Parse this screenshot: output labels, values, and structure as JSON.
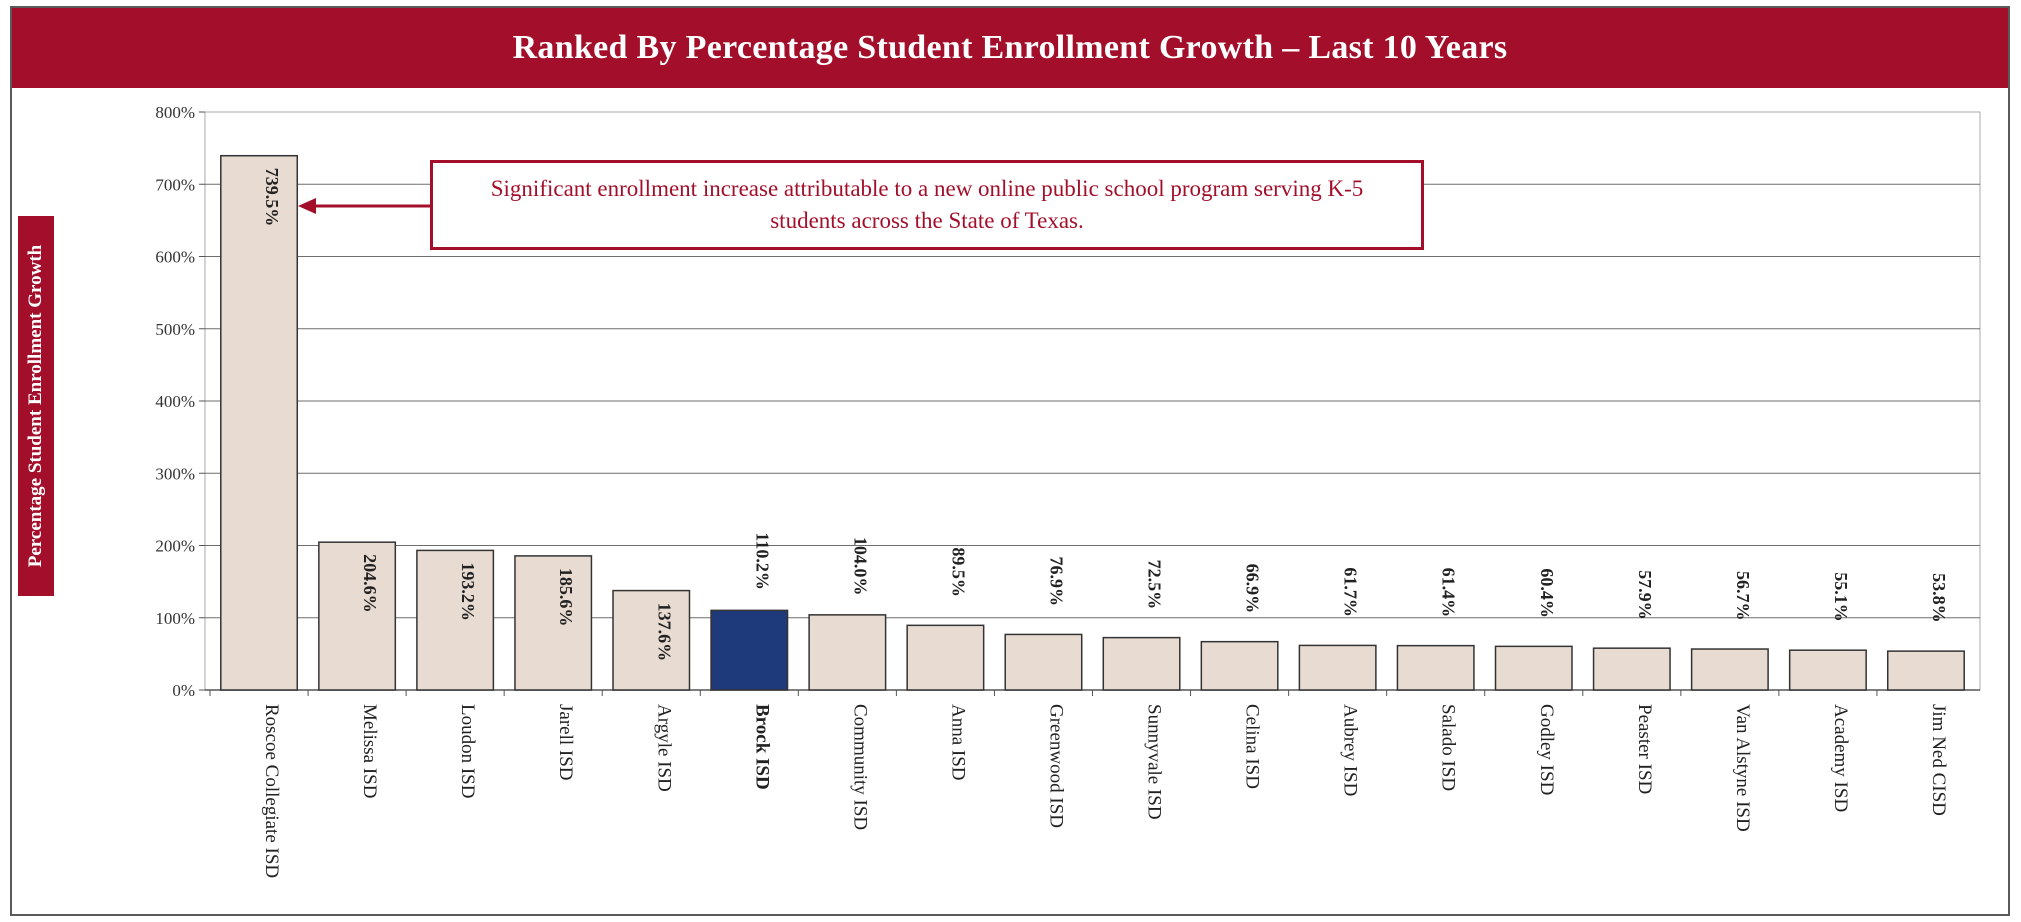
{
  "chart_data": {
    "type": "bar",
    "title": "Ranked By Percentage Student Enrollment Growth – Last 10 Years",
    "ylabel": "Percentage Student Enrollment Growth",
    "xlabel": "",
    "ylim": [
      0,
      800
    ],
    "yticks": [
      "0%",
      "100%",
      "200%",
      "300%",
      "400%",
      "500%",
      "600%",
      "700%",
      "800%"
    ],
    "grid": true,
    "categories": [
      "Roscoe Collegiate ISD",
      "Melissa ISD",
      "Loudon ISD",
      "Jarell ISD",
      "Argyle ISD",
      "Brock ISD",
      "Community ISD",
      "Anna ISD",
      "Greenwood ISD",
      "Sunnyvale ISD",
      "Celina ISD",
      "Aubrey ISD",
      "Salado ISD",
      "Godley ISD",
      "Peaster ISD",
      "Van Alstyne ISD",
      "Academy ISD",
      "Jim Ned CISD"
    ],
    "values": [
      739.5,
      204.6,
      193.2,
      185.6,
      137.6,
      110.2,
      104.0,
      89.5,
      76.9,
      72.5,
      66.9,
      61.7,
      61.4,
      60.4,
      57.9,
      56.7,
      55.1,
      53.8
    ],
    "value_labels": [
      "739.5%",
      "204.6%",
      "193.2%",
      "185.6%",
      "137.6%",
      "110.2%",
      "104.0%",
      "89.5%",
      "76.9%",
      "72.5%",
      "66.9%",
      "61.7%",
      "61.4%",
      "60.4%",
      "57.9%",
      "56.7%",
      "55.1%",
      "53.8%"
    ],
    "highlight_category": "Brock ISD",
    "annotation": "Significant enrollment increase attributable to a new online public school program serving K-5 students across the State of Texas.",
    "colors": {
      "bar": "#e8dcd2",
      "bar_highlight": "#1f3a7a",
      "highlight_text": "#f5e27a",
      "highlight_category_text": "#1f3a7a",
      "title_bg": "#a30f2a",
      "annotation": "#a30f2a"
    }
  }
}
